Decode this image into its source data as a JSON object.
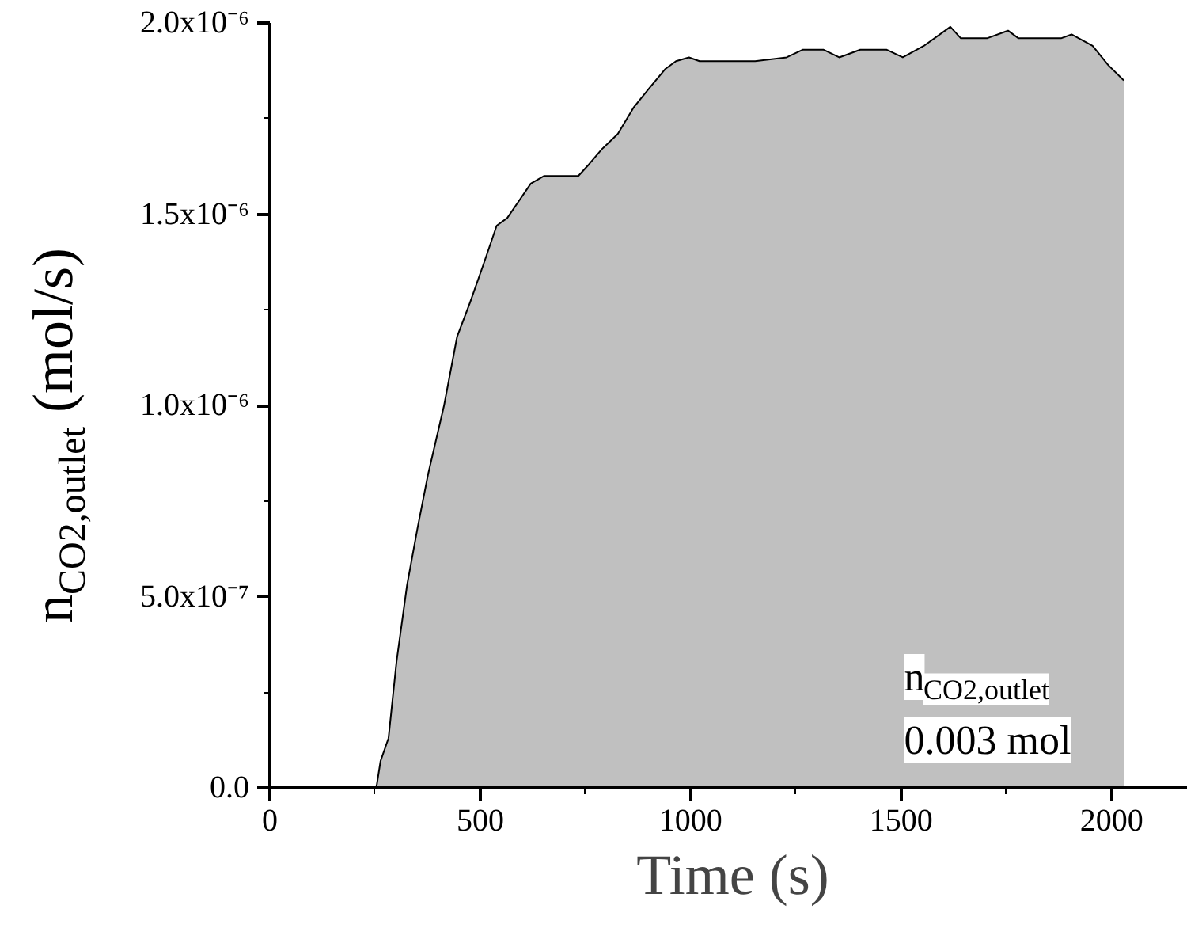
{
  "chart_data": {
    "type": "area",
    "xlabel": "Time (s)",
    "ylabel": "n$_{CO2,outlet}$ (mol/s)",
    "annotations": [
      "n$_{CO2,outlet}$",
      "0.003 mol"
    ],
    "color": "#c0c0c0",
    "x": [
      253,
      263,
      282,
      301,
      326,
      351,
      376,
      414,
      445,
      476,
      508,
      539,
      564,
      589,
      620,
      652,
      733,
      758,
      789,
      827,
      865,
      902,
      940,
      965,
      996,
      1021,
      1090,
      1153,
      1228,
      1266,
      1316,
      1353,
      1403,
      1466,
      1504,
      1554,
      1617,
      1642,
      1704,
      1754,
      1779,
      1880,
      1905,
      1955,
      1992,
      2029
    ],
    "values": [
      0,
      7e-08,
      1.3e-07,
      3.3e-07,
      5.3e-07,
      6.8e-07,
      8.2e-07,
      1e-06,
      1.18e-06,
      1.27e-06,
      1.37e-06,
      1.47e-06,
      1.49e-06,
      1.53e-06,
      1.58e-06,
      1.6e-06,
      1.6e-06,
      1.63e-06,
      1.67e-06,
      1.71e-06,
      1.78e-06,
      1.83e-06,
      1.88e-06,
      1.9e-06,
      1.91e-06,
      1.9e-06,
      1.9e-06,
      1.9e-06,
      1.91e-06,
      1.93e-06,
      1.93e-06,
      1.91e-06,
      1.93e-06,
      1.93e-06,
      1.91e-06,
      1.94e-06,
      1.99e-06,
      1.96e-06,
      1.96e-06,
      1.98e-06,
      1.96e-06,
      1.96e-06,
      1.97e-06,
      1.94e-06,
      1.89e-06,
      1.85e-06
    ],
    "xlim": [
      0,
      2200
    ],
    "xticks": [
      0,
      {
        "value": 250,
        "label": null
      },
      500,
      {
        "value": 750,
        "label": null
      },
      1000,
      {
        "value": 1250,
        "label": null
      },
      1500,
      {
        "value": 1750,
        "label": null
      },
      2000
    ],
    "ylim": [
      0,
      2e-06
    ],
    "yticks": [
      {
        "value": 0,
        "label": "0.0"
      },
      {
        "value": 2.5e-07,
        "label": null
      },
      {
        "value": 5e-07,
        "label": "5.0x10⁻⁷"
      },
      {
        "value": 7.5e-07,
        "label": null
      },
      {
        "value": 1e-06,
        "label": "1.0x10⁻⁶"
      },
      {
        "value": 1.25e-06,
        "label": null
      },
      {
        "value": 1.5e-06,
        "label": "1.5x10⁻⁶"
      },
      {
        "value": 1.75e-06,
        "label": null
      },
      {
        "value": 2e-06,
        "label": "2.0x10⁻⁶"
      }
    ],
    "grid": false
  }
}
